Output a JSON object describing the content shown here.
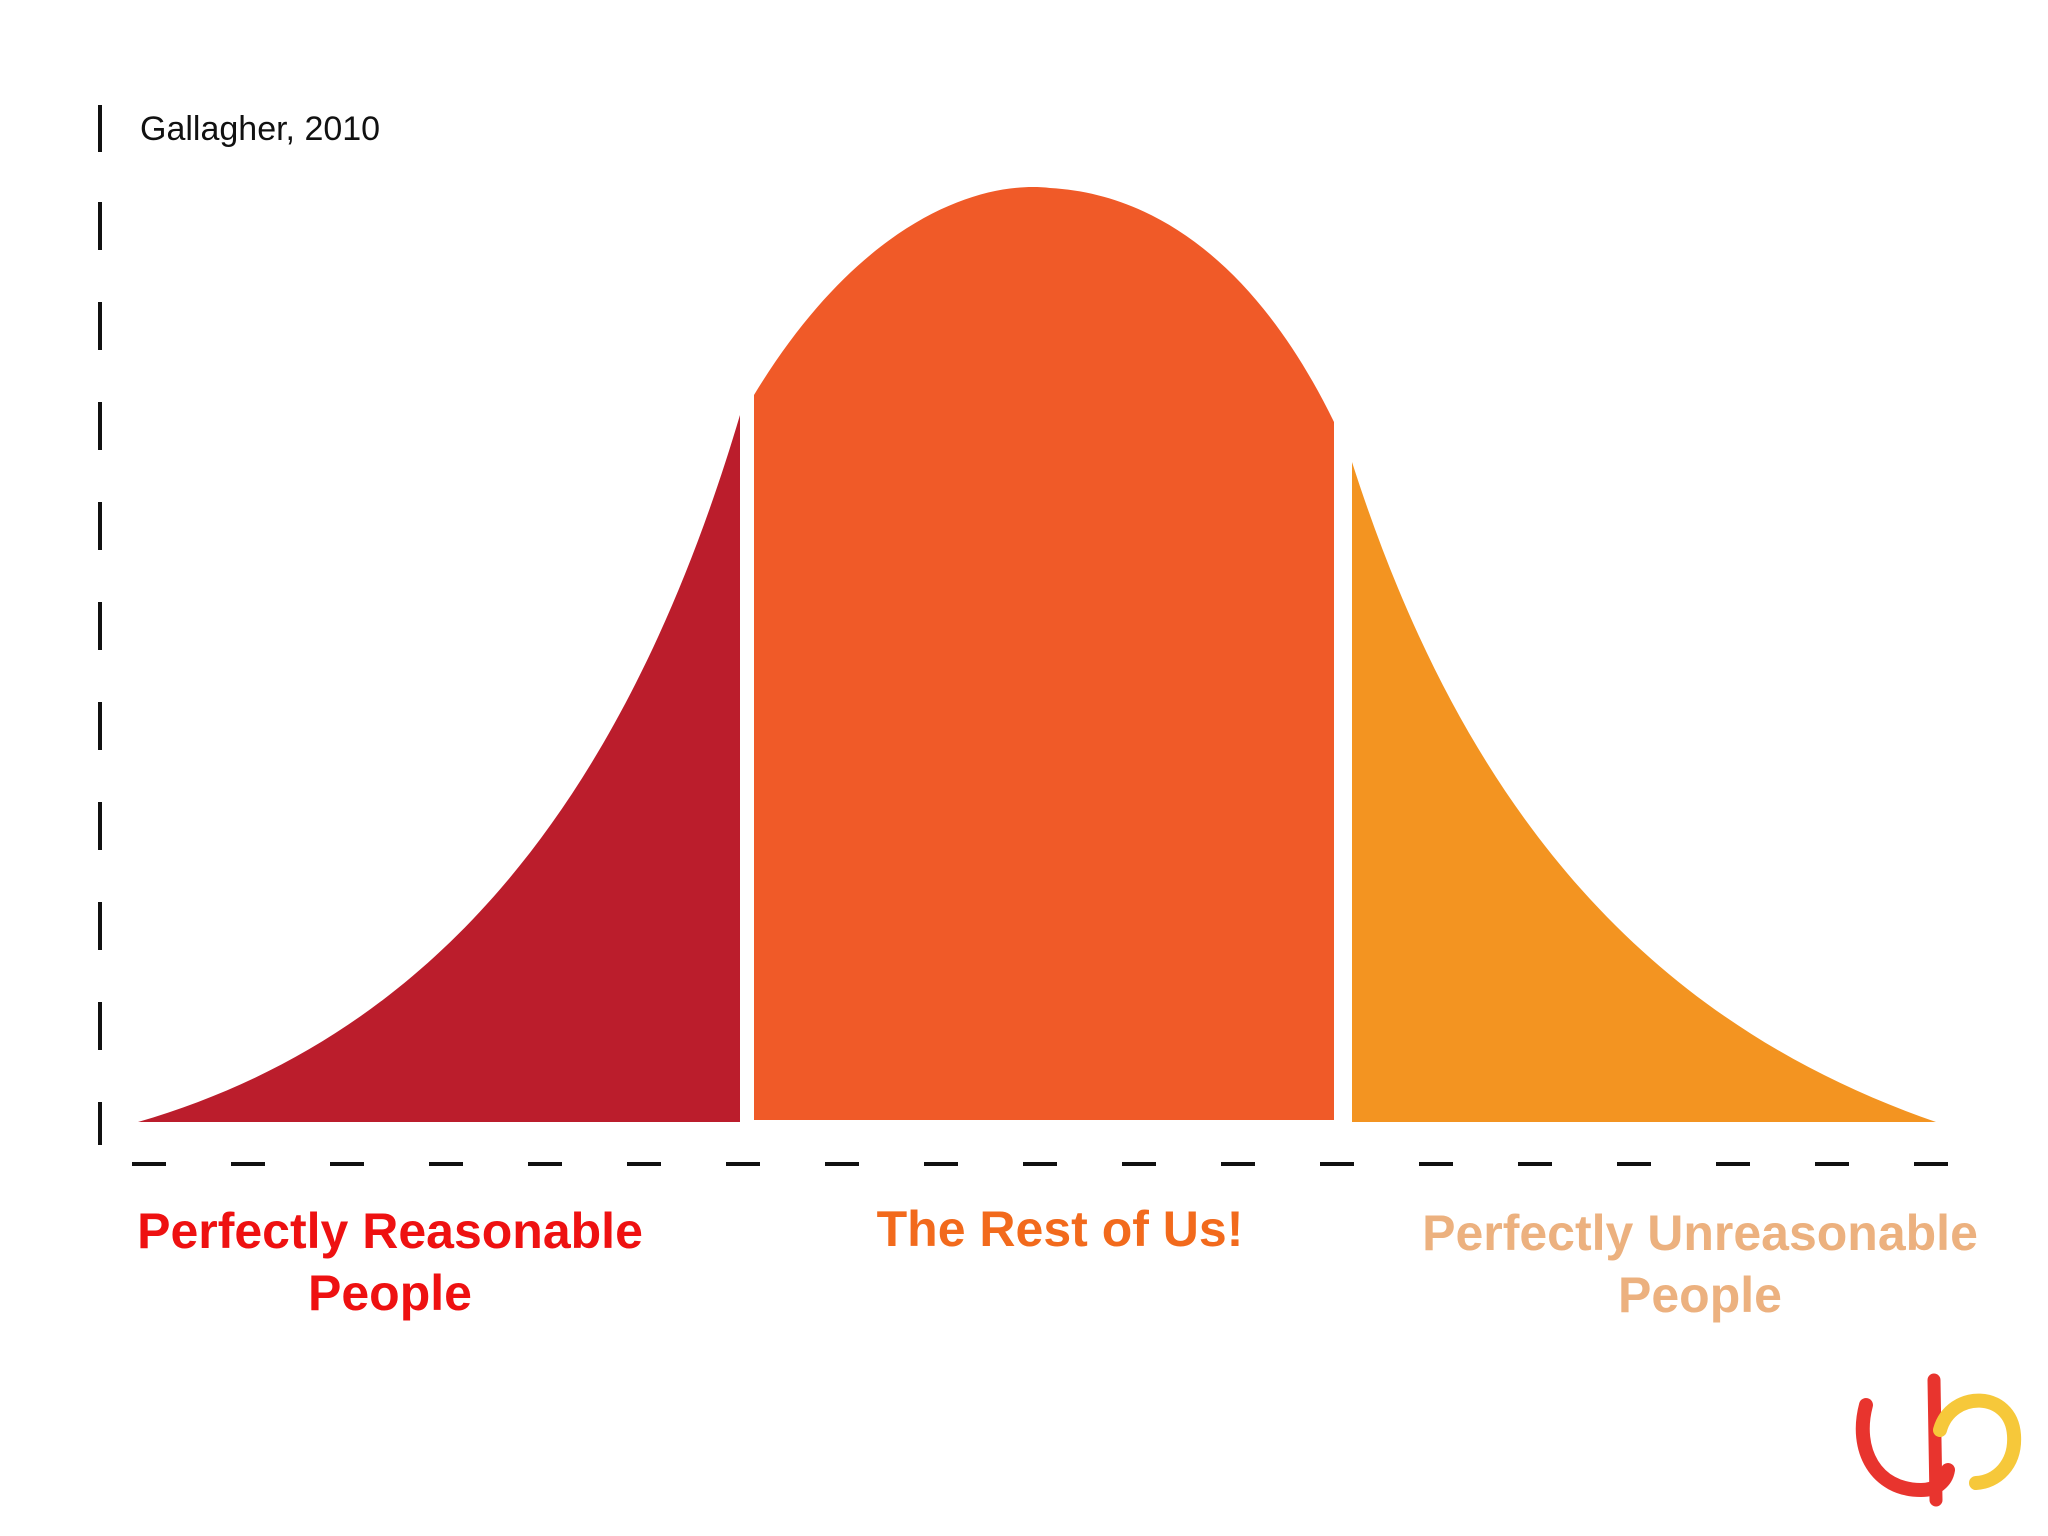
{
  "citation": "Gallagher, 2010",
  "groups": [
    {
      "line1": "Perfectly Reasonable",
      "line2": "People",
      "color": "#bb1d2c",
      "label_color": "#ee1111"
    },
    {
      "line1": "The Rest of Us!",
      "line2": "",
      "color": "#f05a28",
      "label_color": "#f26a1c"
    },
    {
      "line1": "Perfectly Unreasonable",
      "line2": "People",
      "color": "#f39421",
      "label_color": "#ecb17f"
    }
  ],
  "logo": {
    "icon": "brand-logo-icon",
    "colors": [
      "#e8342e",
      "#f6c83a"
    ]
  }
}
